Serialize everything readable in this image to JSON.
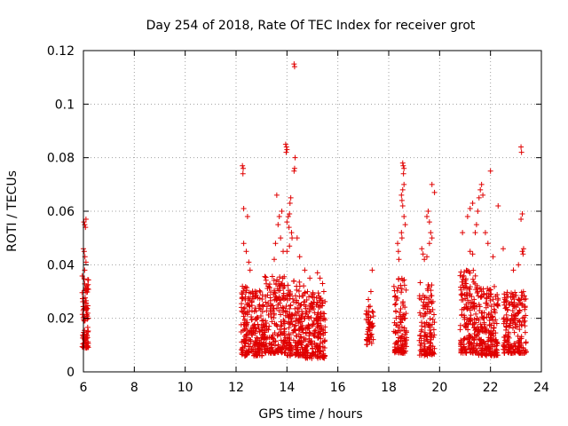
{
  "chart_data": {
    "type": "scatter",
    "title": "Day 254 of 2018, Rate Of TEC Index for receiver grot",
    "xlabel": "GPS time / hours",
    "ylabel": "ROTI / TECUs",
    "xlim": [
      6,
      24
    ],
    "ylim": [
      0,
      0.12
    ],
    "xticks": [
      6,
      8,
      10,
      12,
      14,
      16,
      18,
      20,
      22,
      24
    ],
    "yticks": [
      0,
      0.02,
      0.04,
      0.06,
      0.08,
      0.1,
      0.12
    ],
    "ytick_labels": [
      "0",
      "0.02",
      "0.04",
      "0.06",
      "0.08",
      "0.1",
      "0.12"
    ],
    "grid": true,
    "marker": "+",
    "marker_color": "#e00000",
    "clusters": [
      {
        "x_range": [
          5.95,
          6.2
        ],
        "y_range": [
          0.009,
          0.036
        ],
        "count": 90
      },
      {
        "x_range": [
          12.2,
          13.1
        ],
        "y_range": [
          0.006,
          0.032
        ],
        "count": 240
      },
      {
        "x_range": [
          13.1,
          14.0
        ],
        "y_range": [
          0.007,
          0.036
        ],
        "count": 210
      },
      {
        "x_range": [
          14.0,
          14.7
        ],
        "y_range": [
          0.006,
          0.034
        ],
        "count": 180
      },
      {
        "x_range": [
          14.7,
          15.5
        ],
        "y_range": [
          0.005,
          0.03
        ],
        "count": 200
      },
      {
        "x_range": [
          17.1,
          17.4
        ],
        "y_range": [
          0.01,
          0.027
        ],
        "count": 50
      },
      {
        "x_range": [
          18.2,
          18.7
        ],
        "y_range": [
          0.007,
          0.035
        ],
        "count": 120
      },
      {
        "x_range": [
          19.2,
          19.8
        ],
        "y_range": [
          0.006,
          0.034
        ],
        "count": 130
      },
      {
        "x_range": [
          20.8,
          21.5
        ],
        "y_range": [
          0.007,
          0.038
        ],
        "count": 180
      },
      {
        "x_range": [
          21.5,
          22.3
        ],
        "y_range": [
          0.006,
          0.032
        ],
        "count": 200
      },
      {
        "x_range": [
          22.5,
          23.4
        ],
        "y_range": [
          0.007,
          0.03
        ],
        "count": 200
      }
    ],
    "points": [
      [
        6.02,
        0.056
      ],
      [
        6.05,
        0.055
      ],
      [
        6.1,
        0.057
      ],
      [
        6.08,
        0.054
      ],
      [
        6.0,
        0.046
      ],
      [
        6.03,
        0.045
      ],
      [
        6.06,
        0.043
      ],
      [
        6.1,
        0.041
      ],
      [
        6.05,
        0.038
      ],
      [
        12.25,
        0.077
      ],
      [
        12.28,
        0.076
      ],
      [
        12.27,
        0.074
      ],
      [
        12.3,
        0.061
      ],
      [
        12.45,
        0.058
      ],
      [
        12.3,
        0.048
      ],
      [
        12.4,
        0.045
      ],
      [
        12.5,
        0.041
      ],
      [
        12.55,
        0.038
      ],
      [
        13.6,
        0.066
      ],
      [
        13.7,
        0.058
      ],
      [
        13.8,
        0.06
      ],
      [
        13.65,
        0.055
      ],
      [
        13.75,
        0.05
      ],
      [
        13.55,
        0.048
      ],
      [
        13.85,
        0.045
      ],
      [
        13.5,
        0.042
      ],
      [
        13.95,
        0.085
      ],
      [
        13.98,
        0.084
      ],
      [
        14.0,
        0.083
      ],
      [
        13.97,
        0.082
      ],
      [
        14.15,
        0.065
      ],
      [
        14.12,
        0.063
      ],
      [
        14.1,
        0.059
      ],
      [
        14.05,
        0.058
      ],
      [
        14.0,
        0.056
      ],
      [
        14.08,
        0.054
      ],
      [
        14.18,
        0.052
      ],
      [
        14.2,
        0.05
      ],
      [
        14.1,
        0.047
      ],
      [
        14.0,
        0.045
      ],
      [
        14.28,
        0.115
      ],
      [
        14.3,
        0.114
      ],
      [
        14.32,
        0.08
      ],
      [
        14.3,
        0.076
      ],
      [
        14.28,
        0.075
      ],
      [
        14.4,
        0.05
      ],
      [
        14.5,
        0.043
      ],
      [
        14.7,
        0.038
      ],
      [
        14.9,
        0.035
      ],
      [
        15.2,
        0.037
      ],
      [
        15.3,
        0.035
      ],
      [
        15.4,
        0.033
      ],
      [
        17.35,
        0.038
      ],
      [
        17.3,
        0.03
      ],
      [
        17.2,
        0.027
      ],
      [
        18.35,
        0.048
      ],
      [
        18.38,
        0.045
      ],
      [
        18.4,
        0.042
      ],
      [
        18.5,
        0.052
      ],
      [
        18.52,
        0.05
      ],
      [
        18.55,
        0.078
      ],
      [
        18.57,
        0.077
      ],
      [
        18.6,
        0.076
      ],
      [
        18.58,
        0.074
      ],
      [
        18.6,
        0.07
      ],
      [
        18.55,
        0.068
      ],
      [
        18.5,
        0.066
      ],
      [
        18.52,
        0.064
      ],
      [
        18.55,
        0.062
      ],
      [
        18.6,
        0.058
      ],
      [
        18.65,
        0.055
      ],
      [
        19.3,
        0.046
      ],
      [
        19.35,
        0.044
      ],
      [
        19.4,
        0.042
      ],
      [
        19.5,
        0.058
      ],
      [
        19.55,
        0.06
      ],
      [
        19.6,
        0.056
      ],
      [
        19.65,
        0.052
      ],
      [
        19.7,
        0.05
      ],
      [
        19.7,
        0.07
      ],
      [
        19.8,
        0.067
      ],
      [
        19.6,
        0.048
      ],
      [
        19.5,
        0.043
      ],
      [
        20.9,
        0.052
      ],
      [
        21.1,
        0.058
      ],
      [
        21.2,
        0.061
      ],
      [
        21.3,
        0.063
      ],
      [
        21.4,
        0.052
      ],
      [
        21.45,
        0.055
      ],
      [
        21.5,
        0.06
      ],
      [
        21.55,
        0.065
      ],
      [
        21.6,
        0.068
      ],
      [
        21.65,
        0.07
      ],
      [
        21.7,
        0.066
      ],
      [
        21.8,
        0.052
      ],
      [
        21.9,
        0.048
      ],
      [
        22.0,
        0.075
      ],
      [
        22.3,
        0.062
      ],
      [
        22.5,
        0.046
      ],
      [
        22.1,
        0.043
      ],
      [
        21.2,
        0.045
      ],
      [
        21.3,
        0.044
      ],
      [
        23.2,
        0.084
      ],
      [
        23.22,
        0.082
      ],
      [
        23.25,
        0.059
      ],
      [
        23.2,
        0.057
      ],
      [
        23.3,
        0.046
      ],
      [
        23.25,
        0.045
      ],
      [
        23.28,
        0.044
      ],
      [
        23.1,
        0.04
      ],
      [
        22.9,
        0.038
      ]
    ]
  }
}
